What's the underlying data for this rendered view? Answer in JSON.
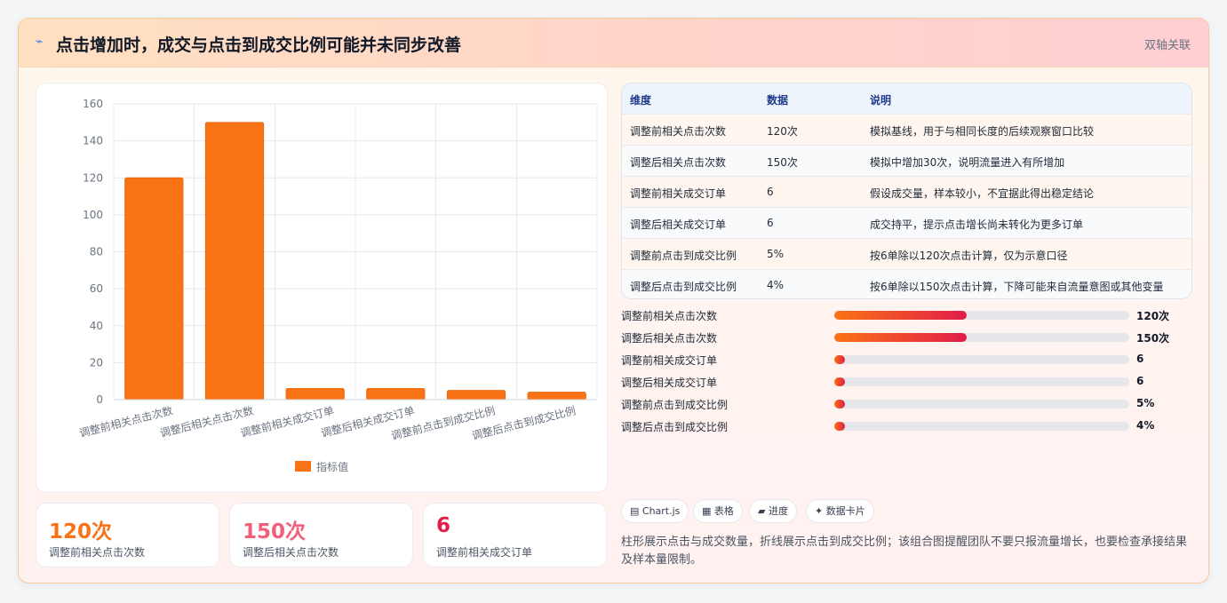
{
  "header": {
    "icon": "sparkle-icon",
    "title": "点击增加时，成交与点击到成交比例可能并未同步改善",
    "badge": "双轴关联"
  },
  "chart_data": {
    "type": "bar",
    "categories": [
      "调整前相关点击次数",
      "调整后相关点击次数",
      "调整前相关成交订单",
      "调整后相关成交订单",
      "调整前点击到成交比例",
      "调整后点击到成交比例"
    ],
    "series": [
      {
        "name": "指标值",
        "values": [
          120,
          150,
          6,
          6,
          5,
          4
        ],
        "color": "#f97316"
      }
    ],
    "yticks": [
      0,
      20,
      40,
      60,
      80,
      100,
      120,
      140,
      160
    ],
    "ylim": [
      0,
      160
    ],
    "grid": true,
    "legend": "bottom"
  },
  "kpis": [
    {
      "value": "120次",
      "label": "调整前相关点击次数",
      "color": "#f97316"
    },
    {
      "value": "150次",
      "label": "调整后相关点击次数",
      "color": "#f0607a"
    },
    {
      "value": "6",
      "label": "调整前相关成交订单",
      "color": "#e11d48"
    }
  ],
  "table": {
    "headers": [
      "维度",
      "数据",
      "说明"
    ],
    "rows": [
      [
        "调整前相关点击次数",
        "120次",
        "模拟基线，用于与相同长度的后续观察窗口比较"
      ],
      [
        "调整后相关点击次数",
        "150次",
        "模拟中增加30次，说明流量进入有所增加"
      ],
      [
        "调整前相关成交订单",
        "6",
        "假设成交量，样本较小，不宜据此得出稳定结论"
      ],
      [
        "调整后相关成交订单",
        "6",
        "成交持平，提示点击增长尚未转化为更多订单"
      ],
      [
        "调整前点击到成交比例",
        "5%",
        "按6单除以120次点击计算，仅为示意口径"
      ],
      [
        "调整后点击到成交比例",
        "4%",
        "按6单除以150次点击计算，下降可能来自流量意图或其他变量"
      ]
    ]
  },
  "progress": [
    {
      "label": "调整前相关点击次数",
      "value": "120次",
      "fraction": 0.45
    },
    {
      "label": "调整后相关点击次数",
      "value": "150次",
      "fraction": 0.45
    },
    {
      "label": "调整前相关成交订单",
      "value": "6",
      "fraction": 0.035
    },
    {
      "label": "调整后相关成交订单",
      "value": "6",
      "fraction": 0.035
    },
    {
      "label": "调整前点击到成交比例",
      "value": "5%",
      "fraction": 0.035
    },
    {
      "label": "调整后点击到成交比例",
      "value": "4%",
      "fraction": 0.035
    }
  ],
  "chips": [
    "▤ Chart.js",
    "▦ 表格",
    "▰ 进度",
    "✦ 数据卡片"
  ],
  "note": "柱形展示点击与成交数量，折线展示点击到成交比例；该组合图提醒团队不要只报流量增长，也要检查承接结果及样本量限制。"
}
